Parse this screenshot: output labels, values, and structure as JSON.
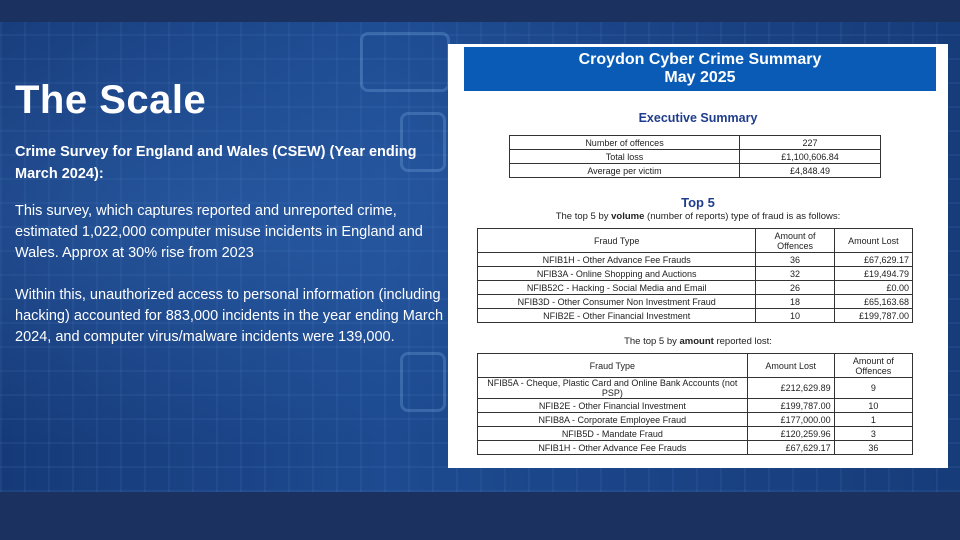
{
  "slide": {
    "title": "The Scale",
    "subtitle": "Crime Survey for England and Wales (CSEW) (Year ending March 2024):",
    "paragraphs": [
      "This survey, which captures reported and unreported crime, estimated 1,022,000 computer misuse incidents in England and Wales. Approx at 30% rise from 2023",
      "Within this, unauthorized access to personal information (including hacking) accounted for 883,000 incidents in the year ending March 2024, and computer virus/malware incidents were 139,000."
    ]
  },
  "document": {
    "title_line1": "Croydon Cyber Crime Summary",
    "title_line2": "May 2025",
    "exec_heading": "Executive Summary",
    "exec_rows": [
      [
        "Number of offences",
        "227"
      ],
      [
        "Total loss",
        "£1,100,606.84"
      ],
      [
        "Average per victim",
        "£4,848.49"
      ]
    ],
    "top5_heading": "Top 5",
    "volume_caption": {
      "pre": "The top 5 by ",
      "bold": "volume",
      "post": " (number of reports) type of fraud is as follows:"
    },
    "volume_headers": [
      "Fraud Type",
      "Amount of Offences",
      "Amount Lost"
    ],
    "volume_rows": [
      [
        "NFIB1H - Other Advance Fee Frauds",
        "36",
        "£67,629.17"
      ],
      [
        "NFIB3A - Online Shopping and Auctions",
        "32",
        "£19,494.79"
      ],
      [
        "NFIB52C - Hacking - Social Media and Email",
        "26",
        "£0.00"
      ],
      [
        "NFIB3D - Other Consumer Non Investment Fraud",
        "18",
        "£65,163.68"
      ],
      [
        "NFIB2E - Other Financial Investment",
        "10",
        "£199,787.00"
      ]
    ],
    "amount_caption": {
      "pre": "The top 5 by ",
      "bold": "amount",
      "post": " reported lost:"
    },
    "amount_headers": [
      "Fraud Type",
      "Amount Lost",
      "Amount of Offences"
    ],
    "amount_rows": [
      [
        "NFIB5A - Cheque, Plastic Card and Online Bank Accounts (not PSP)",
        "£212,629.89",
        "9"
      ],
      [
        "NFIB2E - Other Financial Investment",
        "£199,787.00",
        "10"
      ],
      [
        "NFIB8A - Corporate Employee Fraud",
        "£177,000.00",
        "1"
      ],
      [
        "NFIB5D - Mandate Fraud",
        "£120,259.96",
        "3"
      ],
      [
        "NFIB1H - Other Advance Fee Frauds",
        "£67,629.17",
        "36"
      ]
    ]
  }
}
